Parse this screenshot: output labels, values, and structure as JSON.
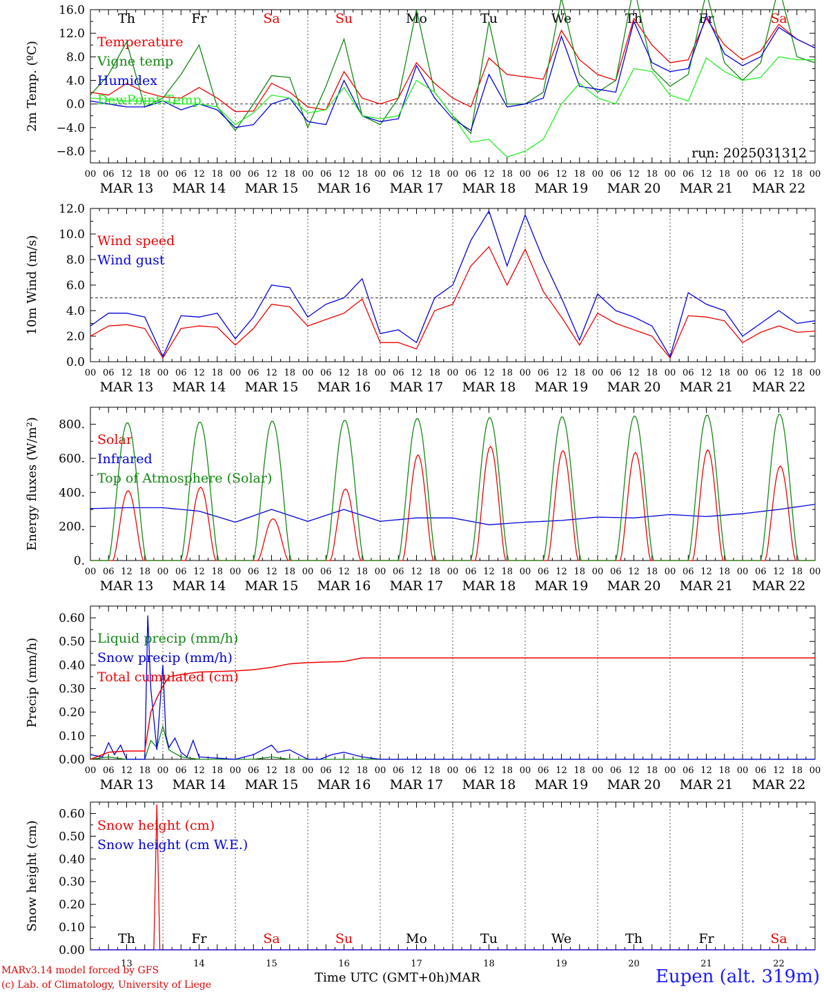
{
  "run_label": "run: 2025031312",
  "footer": {
    "model": "MARv3.14 model forced by GFS",
    "copyright": "(c) Lab. of Climatology, University of Liege",
    "time_label": "Time UTC (GMT+0h)",
    "month_label": "MAR",
    "station": "Eupen (alt. 319m)"
  },
  "days": [
    {
      "weekday": "Th",
      "date": "MAR 13",
      "num": "13",
      "weekend": false
    },
    {
      "weekday": "Fr",
      "date": "MAR 14",
      "num": "14",
      "weekend": false
    },
    {
      "weekday": "Sa",
      "date": "MAR 15",
      "num": "15",
      "weekend": true
    },
    {
      "weekday": "Su",
      "date": "MAR 16",
      "num": "16",
      "weekend": true
    },
    {
      "weekday": "Mo",
      "date": "MAR 17",
      "num": "17",
      "weekend": false
    },
    {
      "weekday": "Tu",
      "date": "MAR 18",
      "num": "18",
      "weekend": false
    },
    {
      "weekday": "We",
      "date": "MAR 19",
      "num": "19",
      "weekend": false
    },
    {
      "weekday": "Th",
      "date": "MAR 20",
      "num": "20",
      "weekend": false
    },
    {
      "weekday": "Fr",
      "date": "MAR 21",
      "num": "21",
      "weekend": false
    },
    {
      "weekday": "Sa",
      "date": "MAR 22",
      "num": "22",
      "weekend": true
    }
  ],
  "hour_labels": [
    "00",
    "06",
    "12",
    "18"
  ],
  "colors": {
    "red": "#ee0000",
    "green": "#118811",
    "blue": "#0000dd",
    "lightgreen": "#22ee22",
    "weekend": "#ee0000",
    "axis": "#000000"
  },
  "chart_data": [
    {
      "type": "line",
      "ylabel": "2m Temp. (ºC)",
      "ylim": [
        -10,
        16
      ],
      "yticks": [
        -8,
        -4,
        0,
        4,
        8,
        12,
        16
      ],
      "ytick_labels": [
        "−8.0",
        "−4.0",
        "0.0",
        "4.0",
        "8.0",
        "12.0",
        "16.0"
      ],
      "hline": 0,
      "x_hours": [
        0,
        6,
        12,
        18,
        24,
        30,
        36,
        42,
        48,
        54,
        60,
        66,
        72,
        78,
        84,
        90,
        96,
        102,
        108,
        114,
        120,
        126,
        132,
        138,
        144,
        150,
        156,
        162,
        168,
        174,
        180,
        186,
        192,
        198,
        204,
        210,
        216,
        222,
        228,
        234,
        240
      ],
      "series": [
        {
          "name": "Temperature",
          "color": "#ee0000",
          "values": [
            2.0,
            1.5,
            3.5,
            2.0,
            1.2,
            1.0,
            2.8,
            1.0,
            -1.3,
            -1.2,
            3.5,
            2.0,
            -0.5,
            -1.0,
            5.5,
            1.0,
            0.0,
            1.0,
            7.0,
            3.5,
            1.0,
            -0.5,
            7.8,
            5.0,
            4.6,
            4.2,
            12.5,
            7.5,
            5.0,
            4.0,
            14.5,
            10.0,
            7.0,
            7.5,
            14.5,
            10.0,
            7.5,
            9.0,
            13.5,
            11.0,
            9.5
          ]
        },
        {
          "name": "Vigne temp",
          "color": "#118811",
          "values": [
            1.5,
            5.0,
            10.5,
            -0.5,
            1.0,
            5.0,
            10.0,
            -0.5,
            -4.5,
            0.0,
            4.8,
            4.5,
            -4.0,
            3.0,
            11.0,
            -2.0,
            -3.5,
            1.0,
            16.0,
            2.0,
            -2.0,
            -5.0,
            14.0,
            0.0,
            0.0,
            2.0,
            18.0,
            5.0,
            2.0,
            4.0,
            20.0,
            6.0,
            3.0,
            5.0,
            19.0,
            7.0,
            4.0,
            7.0,
            20.0,
            8.0,
            7.0
          ]
        },
        {
          "name": "Humidex",
          "color": "#0000dd",
          "values": [
            0.5,
            0.0,
            -0.5,
            -0.5,
            0.5,
            -1.0,
            0.0,
            -1.0,
            -4.0,
            -3.5,
            0.0,
            1.0,
            -3.0,
            -3.5,
            4.0,
            -2.0,
            -3.0,
            -2.5,
            6.5,
            1.0,
            -2.5,
            -4.5,
            5.0,
            -0.5,
            0.0,
            1.0,
            11.5,
            3.0,
            2.5,
            2.0,
            14.0,
            7.0,
            5.5,
            6.0,
            15.0,
            8.5,
            6.5,
            8.0,
            13.0,
            11.0,
            9.5
          ]
        },
        {
          "name": "DewPoint Temp",
          "color": "#22ee22",
          "values": [
            1.0,
            0.8,
            0.5,
            0.5,
            0.5,
            0.0,
            0.0,
            -0.5,
            -3.5,
            -1.5,
            1.5,
            1.0,
            -1.5,
            -1.0,
            2.8,
            -2.0,
            -2.5,
            -2.0,
            4.0,
            2.0,
            -2.0,
            -6.5,
            -6.0,
            -9.0,
            -8.0,
            -6.0,
            0.0,
            3.5,
            1.0,
            0.0,
            6.0,
            5.5,
            1.5,
            0.5,
            7.8,
            5.5,
            4.0,
            4.5,
            8.0,
            7.5,
            7.5
          ]
        }
      ]
    },
    {
      "type": "line",
      "ylabel": "10m Wind (m/s)",
      "ylim": [
        0,
        12
      ],
      "yticks": [
        0,
        2,
        4,
        6,
        8,
        10,
        12
      ],
      "ytick_labels": [
        "0.0",
        "2.0",
        "4.0",
        "6.0",
        "8.0",
        "10.0",
        "12.0"
      ],
      "hline": 5,
      "x_hours": [
        0,
        6,
        12,
        18,
        24,
        30,
        36,
        42,
        48,
        54,
        60,
        66,
        72,
        78,
        84,
        90,
        96,
        102,
        108,
        114,
        120,
        126,
        132,
        138,
        144,
        150,
        156,
        162,
        168,
        174,
        180,
        186,
        192,
        198,
        204,
        210,
        216,
        222,
        228,
        234,
        240
      ],
      "series": [
        {
          "name": "Wind speed",
          "color": "#ee0000",
          "values": [
            2.0,
            2.8,
            2.9,
            2.6,
            0.3,
            2.6,
            2.8,
            2.7,
            1.3,
            2.6,
            4.5,
            4.3,
            2.8,
            3.3,
            3.8,
            4.9,
            1.5,
            1.5,
            1.0,
            4.0,
            4.5,
            7.5,
            9.0,
            6.0,
            8.8,
            5.5,
            3.5,
            1.3,
            3.8,
            3.0,
            2.5,
            2.0,
            0.3,
            3.6,
            3.5,
            3.2,
            1.5,
            2.3,
            2.8,
            2.3,
            2.4
          ]
        },
        {
          "name": "Wind gust",
          "color": "#0000dd",
          "values": [
            2.8,
            3.8,
            3.8,
            3.5,
            0.4,
            3.6,
            3.5,
            3.8,
            1.8,
            3.5,
            6.0,
            5.8,
            3.5,
            4.5,
            5.0,
            6.5,
            2.2,
            2.5,
            1.5,
            5.0,
            6.0,
            9.5,
            11.8,
            7.5,
            11.5,
            8.0,
            5.0,
            1.7,
            5.3,
            4.0,
            3.5,
            2.8,
            0.4,
            5.4,
            4.5,
            4.0,
            2.0,
            3.0,
            4.0,
            3.0,
            3.2
          ]
        }
      ]
    },
    {
      "type": "line",
      "ylabel": "Energy fluxes (W/m²)",
      "ylim": [
        0,
        900
      ],
      "yticks": [
        0,
        200,
        400,
        600,
        800
      ],
      "ytick_labels": [
        "0.",
        "200.",
        "400.",
        "600.",
        "800."
      ],
      "series": [
        {
          "name": "Solar",
          "color": "#ee0000",
          "peaks": [
            410,
            430,
            245,
            420,
            620,
            670,
            645,
            635,
            650,
            555
          ]
        },
        {
          "name": "Infrared",
          "color": "#0000dd",
          "x_hours": [
            0,
            12,
            24,
            36,
            48,
            60,
            72,
            84,
            96,
            108,
            120,
            132,
            144,
            156,
            168,
            180,
            192,
            204,
            216,
            228,
            240
          ],
          "values": [
            305,
            310,
            310,
            290,
            225,
            300,
            230,
            300,
            230,
            250,
            250,
            210,
            225,
            235,
            255,
            250,
            270,
            258,
            275,
            300,
            330
          ]
        },
        {
          "name": "Top of Atmosphere (Solar)",
          "color": "#118811",
          "peaks": [
            810,
            815,
            820,
            825,
            835,
            840,
            845,
            850,
            855,
            860
          ]
        }
      ]
    },
    {
      "type": "line",
      "ylabel": "Precip (mm/h)",
      "ylim": [
        0,
        0.65
      ],
      "yticks": [
        0,
        0.1,
        0.2,
        0.3,
        0.4,
        0.5,
        0.6
      ],
      "ytick_labels": [
        "0.00",
        "0.10",
        "0.20",
        "0.30",
        "0.40",
        "0.50",
        "0.60"
      ],
      "series": [
        {
          "name": "Liquid precip (mm/h)",
          "color": "#118811",
          "x_hours": [
            0,
            6,
            12,
            18,
            20,
            22,
            24,
            26,
            30,
            36,
            48,
            54,
            60,
            66,
            72,
            84,
            90,
            96,
            240
          ],
          "values": [
            0,
            0.01,
            0,
            0,
            0.08,
            0.05,
            0.14,
            0.04,
            0.01,
            0,
            0,
            0,
            0.01,
            0,
            0,
            0,
            0,
            0,
            0
          ]
        },
        {
          "name": "Snow precip (mm/h)",
          "color": "#0000dd",
          "x_hours": [
            0,
            4,
            6,
            8,
            10,
            12,
            18,
            19,
            20,
            22,
            24,
            25,
            26,
            28,
            30,
            32,
            34,
            36,
            48,
            54,
            60,
            62,
            66,
            72,
            76,
            80,
            84,
            90,
            96,
            240
          ],
          "values": [
            0.02,
            0.01,
            0.07,
            0.02,
            0.06,
            0.0,
            0.0,
            0.61,
            0.3,
            0.04,
            0.4,
            0.1,
            0.05,
            0.09,
            0.03,
            0.01,
            0.08,
            0.01,
            0,
            0.02,
            0.06,
            0.03,
            0.04,
            0,
            0,
            0.02,
            0.03,
            0.01,
            0,
            0
          ]
        },
        {
          "name": "Total cumulated (cm)",
          "color": "#ee0000",
          "x_hours": [
            0,
            6,
            12,
            18,
            20,
            22,
            24,
            26,
            30,
            36,
            48,
            54,
            60,
            66,
            72,
            84,
            90,
            96,
            240
          ],
          "values": [
            0.0,
            0.03,
            0.035,
            0.035,
            0.2,
            0.26,
            0.31,
            0.35,
            0.36,
            0.37,
            0.375,
            0.38,
            0.39,
            0.405,
            0.41,
            0.415,
            0.43,
            0.43,
            0.43
          ]
        }
      ]
    },
    {
      "type": "line",
      "ylabel": "Snow height (cm)",
      "ylim": [
        0,
        0.65
      ],
      "yticks": [
        0,
        0.1,
        0.2,
        0.3,
        0.4,
        0.5,
        0.6
      ],
      "ytick_labels": [
        "0.00",
        "0.10",
        "0.20",
        "0.30",
        "0.40",
        "0.50",
        "0.60"
      ],
      "series": [
        {
          "name": "Snow height (cm)",
          "color": "#ee0000",
          "x_hours": [
            0,
            21,
            22,
            23,
            240
          ],
          "values": [
            0,
            0,
            0.64,
            0,
            0
          ]
        },
        {
          "name": "Snow height (cm W.E.)",
          "color": "#0000dd",
          "x_hours": [
            0,
            240
          ],
          "values": [
            0,
            0
          ]
        }
      ]
    }
  ]
}
